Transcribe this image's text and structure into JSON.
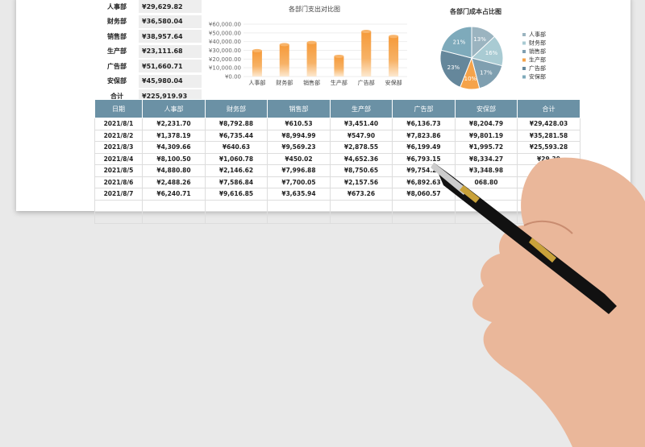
{
  "summary": [
    {
      "label": "人事部",
      "value": "¥29,629.82"
    },
    {
      "label": "财务部",
      "value": "¥36,580.04"
    },
    {
      "label": "销售部",
      "value": "¥38,957.64"
    },
    {
      "label": "生产部",
      "value": "¥23,111.68"
    },
    {
      "label": "广告部",
      "value": "¥51,660.71"
    },
    {
      "label": "安保部",
      "value": "¥45,980.04"
    },
    {
      "label": "合计",
      "value": "¥225,919.93"
    }
  ],
  "chart_data": [
    {
      "type": "bar",
      "title": "各部门支出对比图",
      "categories": [
        "人事部",
        "财务部",
        "销售部",
        "生产部",
        "广告部",
        "安保部"
      ],
      "values": [
        29629.82,
        36580.04,
        38957.64,
        23111.68,
        51660.71,
        45980.04
      ],
      "ylim": [
        0,
        60000
      ],
      "yticks": [
        "¥0.00",
        "¥10,000.00",
        "¥20,000.00",
        "¥30,000.00",
        "¥40,000.00",
        "¥50,000.00",
        "¥60,000.00"
      ],
      "grid": true,
      "color": "#f59a3a"
    },
    {
      "type": "pie",
      "title": "各部门成本占比图",
      "categories": [
        "人事部",
        "财务部",
        "销售部",
        "生产部",
        "广告部",
        "安保部"
      ],
      "values": [
        13,
        16,
        17,
        10,
        23,
        21
      ],
      "labels": [
        "13%",
        "16%",
        "17%",
        "10%",
        "23%",
        "21%"
      ],
      "colors": [
        "#9bb4c0",
        "#a9cbd3",
        "#7f9fb0",
        "#f5a34a",
        "#65879b",
        "#7eaabb"
      ],
      "legend": "right"
    }
  ],
  "table": {
    "headers": [
      "日期",
      "人事部",
      "财务部",
      "销售部",
      "生产部",
      "广告部",
      "安保部",
      "合计"
    ],
    "rows": [
      [
        "2021/8/1",
        "¥2,231.70",
        "¥8,792.88",
        "¥610.53",
        "¥3,451.40",
        "¥6,136.73",
        "¥8,204.79",
        "¥29,428.03"
      ],
      [
        "2021/8/2",
        "¥1,378.19",
        "¥6,735.44",
        "¥8,994.99",
        "¥547.90",
        "¥7,823.86",
        "¥9,801.19",
        "¥35,281.58"
      ],
      [
        "2021/8/3",
        "¥4,309.66",
        "¥640.63",
        "¥9,569.23",
        "¥2,878.55",
        "¥6,199.49",
        "¥1,995.72",
        "¥25,593.28"
      ],
      [
        "2021/8/4",
        "¥8,100.50",
        "¥1,060.78",
        "¥450.02",
        "¥4,652.36",
        "¥6,793.15",
        "¥8,334.27",
        "¥29,39"
      ],
      [
        "2021/8/5",
        "¥4,880.80",
        "¥2,146.62",
        "¥7,996.88",
        "¥8,750.65",
        "¥9,754.29",
        "¥3,348.98",
        ""
      ],
      [
        "2021/8/6",
        "¥2,488.26",
        "¥7,586.84",
        "¥7,700.05",
        "¥2,157.56",
        "¥6,892.63",
        "068.80",
        ""
      ],
      [
        "2021/8/7",
        "¥6,240.71",
        "¥9,616.85",
        "¥3,635.94",
        "¥673.26",
        "¥8,060.57",
        "",
        ""
      ],
      [
        "",
        "",
        "",
        "",
        "",
        "",
        "",
        ""
      ],
      [
        "",
        "",
        "",
        "",
        "",
        "",
        "",
        ""
      ]
    ]
  }
}
